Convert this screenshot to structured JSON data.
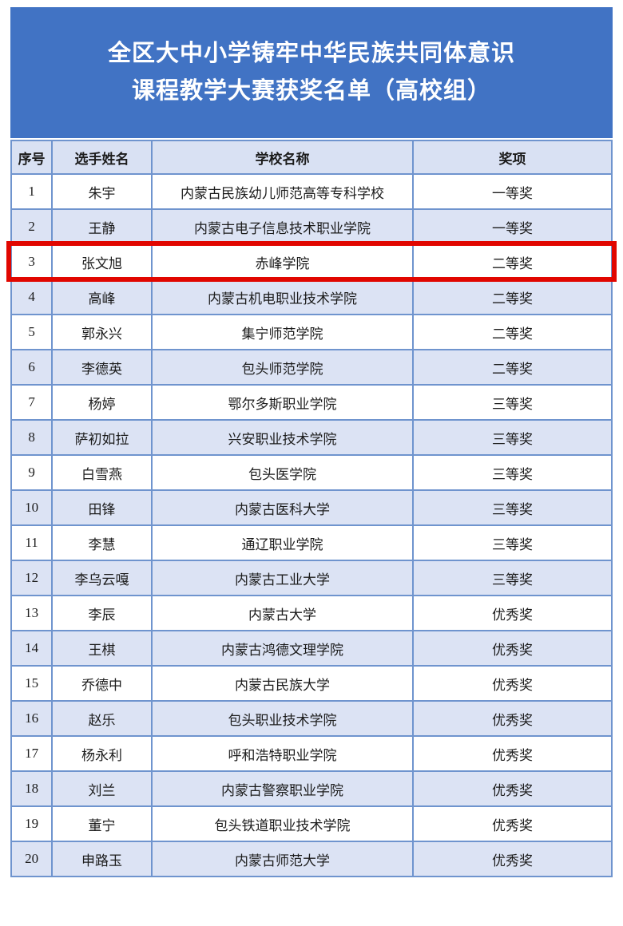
{
  "header": {
    "title_line1": "全区大中小学铸牢中华民族共同体意识",
    "title_line2": "课程教学大赛获奖名单（高校组）",
    "background_color": "#4173c4",
    "text_color": "#ffffff"
  },
  "table": {
    "columns": [
      {
        "key": "no",
        "label": "序号"
      },
      {
        "key": "name",
        "label": "选手姓名"
      },
      {
        "key": "school",
        "label": "学校名称"
      },
      {
        "key": "award",
        "label": "奖项"
      }
    ],
    "rows": [
      {
        "no": "1",
        "name": "朱宇",
        "school": "内蒙古民族幼儿师范高等专科学校",
        "award": "一等奖",
        "highlighted": false
      },
      {
        "no": "2",
        "name": "王静",
        "school": "内蒙古电子信息技术职业学院",
        "award": "一等奖",
        "highlighted": false
      },
      {
        "no": "3",
        "name": "张文旭",
        "school": "赤峰学院",
        "award": "二等奖",
        "highlighted": true
      },
      {
        "no": "4",
        "name": "高峰",
        "school": "内蒙古机电职业技术学院",
        "award": "二等奖",
        "highlighted": false
      },
      {
        "no": "5",
        "name": "郭永兴",
        "school": "集宁师范学院",
        "award": "二等奖",
        "highlighted": false
      },
      {
        "no": "6",
        "name": "李德英",
        "school": "包头师范学院",
        "award": "二等奖",
        "highlighted": false
      },
      {
        "no": "7",
        "name": "杨婷",
        "school": "鄂尔多斯职业学院",
        "award": "三等奖",
        "highlighted": false
      },
      {
        "no": "8",
        "name": "萨初如拉",
        "school": "兴安职业技术学院",
        "award": "三等奖",
        "highlighted": false
      },
      {
        "no": "9",
        "name": "白雪燕",
        "school": "包头医学院",
        "award": "三等奖",
        "highlighted": false
      },
      {
        "no": "10",
        "name": "田锋",
        "school": "内蒙古医科大学",
        "award": "三等奖",
        "highlighted": false
      },
      {
        "no": "11",
        "name": "李慧",
        "school": "通辽职业学院",
        "award": "三等奖",
        "highlighted": false
      },
      {
        "no": "12",
        "name": "李乌云嘎",
        "school": "内蒙古工业大学",
        "award": "三等奖",
        "highlighted": false
      },
      {
        "no": "13",
        "name": "李辰",
        "school": "内蒙古大学",
        "award": "优秀奖",
        "highlighted": false
      },
      {
        "no": "14",
        "name": "王棋",
        "school": "内蒙古鸿德文理学院",
        "award": "优秀奖",
        "highlighted": false
      },
      {
        "no": "15",
        "name": "乔德中",
        "school": "内蒙古民族大学",
        "award": "优秀奖",
        "highlighted": false
      },
      {
        "no": "16",
        "name": "赵乐",
        "school": "包头职业技术学院",
        "award": "优秀奖",
        "highlighted": false
      },
      {
        "no": "17",
        "name": "杨永利",
        "school": "呼和浩特职业学院",
        "award": "优秀奖",
        "highlighted": false
      },
      {
        "no": "18",
        "name": "刘兰",
        "school": "内蒙古警察职业学院",
        "award": "优秀奖",
        "highlighted": false
      },
      {
        "no": "19",
        "name": "董宁",
        "school": "包头铁道职业技术学院",
        "award": "优秀奖",
        "highlighted": false
      },
      {
        "no": "20",
        "name": "申路玉",
        "school": "内蒙古师范大学",
        "award": "优秀奖",
        "highlighted": false
      }
    ],
    "colors": {
      "border": "#6f94ce",
      "header_row_background": "#d9e1f3",
      "stripe_row_background": "#dce3f4",
      "row_background": "#ffffff",
      "text": "#1c1c1c",
      "highlight_border": "#e10600"
    }
  }
}
